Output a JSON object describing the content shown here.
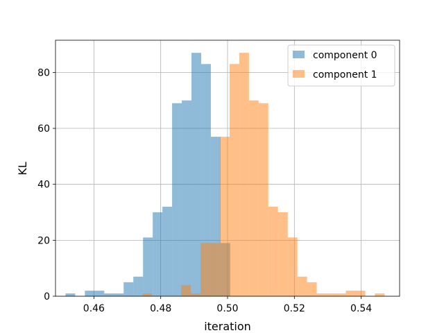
{
  "chart_data": {
    "type": "bar",
    "title": "",
    "xlabel": "iteration",
    "ylabel": "KL",
    "xlim": [
      0.4485,
      0.5515
    ],
    "ylim": [
      0,
      91.5
    ],
    "xticks": [
      0.46,
      0.48,
      0.5,
      0.52,
      0.54
    ],
    "xtick_labels": [
      "0.46",
      "0.48",
      "0.50",
      "0.52",
      "0.54"
    ],
    "yticks": [
      0,
      20,
      40,
      60,
      80
    ],
    "ytick_labels": [
      "0",
      "20",
      "40",
      "60",
      "80"
    ],
    "grid": true,
    "legend_position": "top-right",
    "series": [
      {
        "name": "component 0",
        "color": "#1f77b4",
        "opacity": 0.5,
        "bins": [
          {
            "x0": 0.4515,
            "x1": 0.4544,
            "count": 1
          },
          {
            "x0": 0.4544,
            "x1": 0.4573,
            "count": 0
          },
          {
            "x0": 0.4573,
            "x1": 0.4602,
            "count": 2
          },
          {
            "x0": 0.4602,
            "x1": 0.4631,
            "count": 2
          },
          {
            "x0": 0.4631,
            "x1": 0.466,
            "count": 1
          },
          {
            "x0": 0.466,
            "x1": 0.4689,
            "count": 1
          },
          {
            "x0": 0.4689,
            "x1": 0.4718,
            "count": 5
          },
          {
            "x0": 0.4718,
            "x1": 0.4747,
            "count": 7
          },
          {
            "x0": 0.4747,
            "x1": 0.4776,
            "count": 21
          },
          {
            "x0": 0.4776,
            "x1": 0.4805,
            "count": 30
          },
          {
            "x0": 0.4805,
            "x1": 0.4834,
            "count": 32
          },
          {
            "x0": 0.4834,
            "x1": 0.4863,
            "count": 69
          },
          {
            "x0": 0.4863,
            "x1": 0.4892,
            "count": 70
          },
          {
            "x0": 0.4892,
            "x1": 0.4921,
            "count": 87
          },
          {
            "x0": 0.4921,
            "x1": 0.495,
            "count": 83
          },
          {
            "x0": 0.495,
            "x1": 0.4979,
            "count": 57
          },
          {
            "x0": 0.4979,
            "x1": 0.5008,
            "count": 19
          }
        ]
      },
      {
        "name": "component 1",
        "color": "#ff7f0e",
        "opacity": 0.5,
        "bins": [
          {
            "x0": 0.4745,
            "x1": 0.4774,
            "count": 1
          },
          {
            "x0": 0.4774,
            "x1": 0.4803,
            "count": 0
          },
          {
            "x0": 0.4803,
            "x1": 0.4832,
            "count": 0
          },
          {
            "x0": 0.4832,
            "x1": 0.4861,
            "count": 0
          },
          {
            "x0": 0.4861,
            "x1": 0.489,
            "count": 4
          },
          {
            "x0": 0.489,
            "x1": 0.4919,
            "count": 1
          },
          {
            "x0": 0.4919,
            "x1": 0.4948,
            "count": 19
          },
          {
            "x0": 0.4948,
            "x1": 0.4977,
            "count": 19
          },
          {
            "x0": 0.4977,
            "x1": 0.5006,
            "count": 57
          },
          {
            "x0": 0.5006,
            "x1": 0.5035,
            "count": 83
          },
          {
            "x0": 0.5035,
            "x1": 0.5064,
            "count": 87
          },
          {
            "x0": 0.5064,
            "x1": 0.5093,
            "count": 70
          },
          {
            "x0": 0.5093,
            "x1": 0.5122,
            "count": 69
          },
          {
            "x0": 0.5122,
            "x1": 0.5151,
            "count": 32
          },
          {
            "x0": 0.5151,
            "x1": 0.518,
            "count": 30
          },
          {
            "x0": 0.518,
            "x1": 0.5209,
            "count": 21
          },
          {
            "x0": 0.5209,
            "x1": 0.5238,
            "count": 7
          },
          {
            "x0": 0.5238,
            "x1": 0.5267,
            "count": 5
          },
          {
            "x0": 0.5267,
            "x1": 0.5296,
            "count": 1
          },
          {
            "x0": 0.5296,
            "x1": 0.5325,
            "count": 1
          },
          {
            "x0": 0.5325,
            "x1": 0.5354,
            "count": 1
          },
          {
            "x0": 0.5354,
            "x1": 0.5383,
            "count": 2
          },
          {
            "x0": 0.5383,
            "x1": 0.5412,
            "count": 2
          },
          {
            "x0": 0.5412,
            "x1": 0.5441,
            "count": 0
          },
          {
            "x0": 0.5441,
            "x1": 0.547,
            "count": 1
          }
        ]
      }
    ]
  }
}
